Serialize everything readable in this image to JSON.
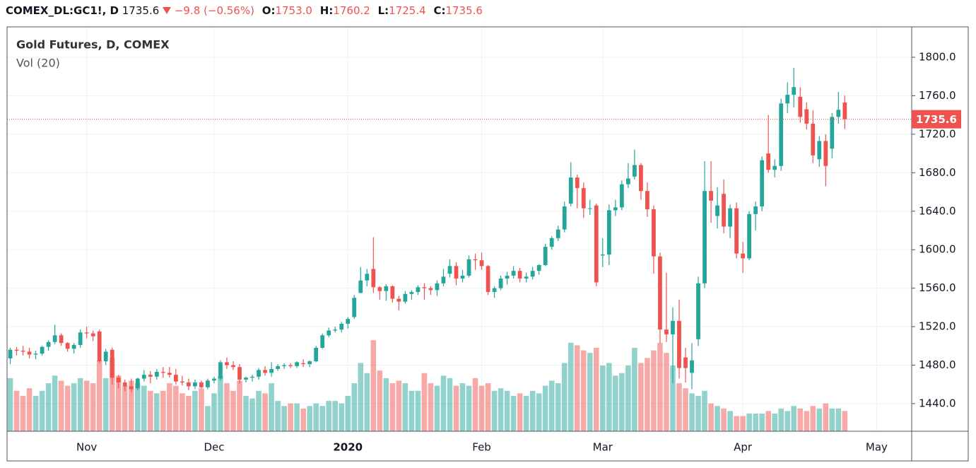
{
  "chart_data": {
    "type": "candlestick",
    "title": "Gold Futures, D, COMEX",
    "subtitle": "Vol (20)",
    "header": {
      "symbol": "COMEX_DL:GC1!, D",
      "last": "1735.6",
      "change": "−9.8 (−0.56%)",
      "o_label": "O:",
      "o": "1753.0",
      "h_label": "H:",
      "h": "1760.2",
      "l_label": "L:",
      "l": "1725.4",
      "c_label": "C:",
      "c": "1735.6"
    },
    "up_color": "#26a69a",
    "down_color": "#ef5350",
    "ylim": [
      1411.3,
      1831.6
    ],
    "yticks": [
      {
        "value": 1440,
        "label": "1440.0"
      },
      {
        "value": 1480,
        "label": "1480.0"
      },
      {
        "value": 1520,
        "label": "1520.0"
      },
      {
        "value": 1560,
        "label": "1560.0"
      },
      {
        "value": 1600,
        "label": "1600.0"
      },
      {
        "value": 1640,
        "label": "1640.0"
      },
      {
        "value": 1680,
        "label": "1680.0"
      },
      {
        "value": 1720,
        "label": "1720.0"
      },
      {
        "value": 1760,
        "label": "1760.0"
      },
      {
        "value": 1800,
        "label": "1800.0"
      }
    ],
    "volume_ylim": [
      0,
      800
    ],
    "grid": true,
    "categories": [
      null,
      null,
      null,
      null,
      null,
      null,
      null,
      null,
      null,
      null,
      null,
      null,
      "Nov",
      null,
      null,
      null,
      null,
      null,
      null,
      null,
      null,
      null,
      null,
      null,
      null,
      null,
      null,
      null,
      null,
      null,
      null,
      null,
      "Dec",
      null,
      null,
      null,
      null,
      null,
      null,
      null,
      null,
      null,
      null,
      null,
      null,
      null,
      null,
      null,
      null,
      null,
      null,
      null,
      null,
      "2020",
      null,
      null,
      null,
      null,
      null,
      null,
      null,
      null,
      null,
      null,
      null,
      null,
      null,
      null,
      null,
      null,
      null,
      null,
      null,
      null,
      "Feb",
      null,
      null,
      null,
      null,
      null,
      null,
      null,
      null,
      null,
      null,
      null,
      null,
      null,
      null,
      null,
      null,
      null,
      null,
      "Mar",
      null,
      null,
      null,
      null,
      null,
      null,
      null,
      null,
      null,
      null,
      null,
      null,
      null,
      null,
      null,
      null,
      null,
      null,
      null,
      null,
      null,
      "Apr",
      null,
      null,
      null,
      null,
      null,
      null,
      null,
      null,
      null,
      null,
      null,
      null,
      null,
      null,
      null,
      null,
      null,
      null,
      null,
      null,
      "May",
      null,
      null,
      null,
      null,
      null
    ],
    "open": [
      1487,
      1496,
      1495,
      1494,
      1491,
      1492,
      1499,
      1504,
      1511,
      1503,
      1497,
      1501,
      1514,
      1513,
      1515,
      1484,
      1496,
      1467,
      1462,
      1458,
      1456,
      1466,
      1470,
      1468,
      1473,
      1472,
      1470,
      1463,
      1462,
      1458,
      1462,
      1457,
      1464,
      1466,
      1483,
      1480,
      1478,
      1465,
      1467,
      1468,
      1475,
      1472,
      1476,
      1479,
      1480,
      1479,
      1482,
      1481,
      1484,
      1498,
      1511,
      1516,
      1517,
      1523,
      1530,
      1555,
      1568,
      1580,
      1561,
      1557,
      1562,
      1549,
      1546,
      1554,
      1556,
      1561,
      1560,
      1558,
      1565,
      1575,
      1583,
      1570,
      1573,
      1590,
      1589,
      1583,
      1556,
      1560,
      1570,
      1573,
      1578,
      1570,
      1572,
      1578,
      1584,
      1603,
      1612,
      1621,
      1648,
      1675,
      1664,
      1643,
      1646,
      1594,
      1595,
      1641,
      1644,
      1668,
      1676,
      1688,
      1661,
      1642,
      1593,
      1517,
      1512,
      1526,
      1488,
      1472,
      1507,
      1565,
      1661,
      1635,
      1658,
      1624,
      1643,
      1596,
      1591,
      1637,
      1645,
      1700,
      1683,
      1687,
      1752,
      1761,
      1759,
      1746,
      1731,
      1694,
      1713,
      1705,
      1738,
      1753,
      null,
      null,
      null,
      null,
      null,
      null,
      null,
      null,
      null,
      null
    ],
    "high": [
      1498,
      1499,
      1500,
      1498,
      1495,
      1500,
      1506,
      1522,
      1513,
      1504,
      1503,
      1517,
      1520,
      1516,
      1517,
      1497,
      1498,
      1470,
      1465,
      1466,
      1467,
      1475,
      1474,
      1476,
      1478,
      1478,
      1476,
      1469,
      1466,
      1465,
      1464,
      1466,
      1468,
      1485,
      1488,
      1484,
      1481,
      1468,
      1470,
      1477,
      1479,
      1483,
      1481,
      1482,
      1482,
      1484,
      1486,
      1485,
      1500,
      1513,
      1519,
      1520,
      1525,
      1530,
      1553,
      1582,
      1580,
      1613,
      1562,
      1564,
      1563,
      1552,
      1557,
      1558,
      1563,
      1565,
      1562,
      1568,
      1580,
      1590,
      1587,
      1579,
      1594,
      1596,
      1597,
      1584,
      1562,
      1573,
      1577,
      1583,
      1581,
      1576,
      1582,
      1585,
      1606,
      1614,
      1625,
      1650,
      1691,
      1678,
      1670,
      1652,
      1648,
      1612,
      1647,
      1652,
      1672,
      1690,
      1704,
      1690,
      1670,
      1646,
      1597,
      1576,
      1540,
      1548,
      1498,
      1503,
      1572,
      1692,
      1692,
      1665,
      1673,
      1647,
      1649,
      1608,
      1640,
      1650,
      1697,
      1740,
      1694,
      1757,
      1774,
      1789,
      1769,
      1753,
      1745,
      1718,
      1720,
      1742,
      1764,
      1760.2,
      null,
      null,
      null,
      null,
      null,
      null,
      null,
      null,
      null,
      null
    ],
    "low": [
      1481,
      1490,
      1490,
      1487,
      1486,
      1490,
      1495,
      1502,
      1500,
      1494,
      1492,
      1498,
      1508,
      1505,
      1482,
      1480,
      1460,
      1456,
      1453,
      1452,
      1454,
      1463,
      1461,
      1465,
      1467,
      1467,
      1460,
      1459,
      1454,
      1455,
      1456,
      1455,
      1461,
      1464,
      1476,
      1475,
      1461,
      1462,
      1463,
      1465,
      1469,
      1468,
      1474,
      1476,
      1477,
      1477,
      1478,
      1478,
      1483,
      1497,
      1509,
      1514,
      1514,
      1518,
      1528,
      1555,
      1562,
      1555,
      1548,
      1547,
      1545,
      1537,
      1544,
      1548,
      1553,
      1548,
      1553,
      1552,
      1562,
      1571,
      1563,
      1566,
      1571,
      1579,
      1579,
      1553,
      1550,
      1558,
      1564,
      1570,
      1566,
      1566,
      1569,
      1574,
      1583,
      1600,
      1609,
      1618,
      1645,
      1643,
      1633,
      1636,
      1562,
      1582,
      1584,
      1635,
      1641,
      1664,
      1673,
      1652,
      1634,
      1575,
      1503,
      1504,
      1461,
      1466,
      1462,
      1455,
      1500,
      1560,
      1628,
      1622,
      1617,
      1612,
      1591,
      1576,
      1589,
      1620,
      1640,
      1680,
      1675,
      1682,
      1742,
      1748,
      1732,
      1725,
      1690,
      1686,
      1666,
      1695,
      1731,
      1725.4,
      null,
      null,
      null,
      null,
      null,
      null,
      null,
      null,
      null,
      null
    ],
    "close": [
      1496,
      1495,
      1494,
      1491,
      1492,
      1499,
      1504,
      1511,
      1503,
      1497,
      1501,
      1514,
      1513,
      1510,
      1484,
      1494,
      1467,
      1462,
      1458,
      1455,
      1466,
      1470,
      1468,
      1473,
      1472,
      1470,
      1463,
      1462,
      1458,
      1462,
      1457,
      1464,
      1466,
      1483,
      1480,
      1478,
      1465,
      1467,
      1468,
      1475,
      1472,
      1476,
      1479,
      1480,
      1479,
      1483,
      1481,
      1484,
      1498,
      1511,
      1516,
      1517,
      1523,
      1528,
      1550,
      1568,
      1575,
      1561,
      1557,
      1562,
      1549,
      1546,
      1554,
      1556,
      1561,
      1560,
      1558,
      1565,
      1572,
      1583,
      1570,
      1573,
      1590,
      1589,
      1583,
      1556,
      1560,
      1570,
      1573,
      1578,
      1570,
      1572,
      1578,
      1584,
      1603,
      1612,
      1621,
      1645,
      1675,
      1664,
      1643,
      1643,
      1566,
      1595,
      1641,
      1644,
      1668,
      1674,
      1688,
      1661,
      1642,
      1593,
      1517,
      1512,
      1526,
      1477,
      1477,
      1485,
      1565,
      1661,
      1651,
      1646,
      1624,
      1643,
      1596,
      1591,
      1637,
      1645,
      1693,
      1683,
      1687,
      1752,
      1761,
      1769,
      1738,
      1731,
      1698,
      1713,
      1687,
      1738,
      1745.4,
      1735.6,
      null,
      null,
      null,
      null,
      null,
      null,
      null,
      null,
      null,
      null
    ],
    "volume": [
      105,
      80,
      70,
      85,
      70,
      80,
      95,
      110,
      100,
      90,
      95,
      105,
      100,
      95,
      140,
      105,
      145,
      110,
      90,
      100,
      95,
      90,
      80,
      75,
      80,
      95,
      90,
      75,
      70,
      80,
      85,
      50,
      75,
      110,
      95,
      80,
      100,
      70,
      65,
      80,
      75,
      95,
      60,
      50,
      55,
      55,
      45,
      50,
      55,
      50,
      60,
      60,
      55,
      70,
      95,
      135,
      115,
      180,
      120,
      105,
      95,
      100,
      95,
      80,
      80,
      115,
      95,
      90,
      110,
      105,
      90,
      95,
      90,
      105,
      90,
      95,
      80,
      85,
      80,
      70,
      75,
      70,
      80,
      75,
      90,
      100,
      95,
      135,
      175,
      170,
      160,
      155,
      165,
      130,
      135,
      110,
      115,
      130,
      165,
      135,
      145,
      160,
      175,
      155,
      130,
      95,
      85,
      75,
      70,
      80,
      55,
      50,
      45,
      40,
      30,
      30,
      35,
      35,
      35,
      40,
      35,
      45,
      40,
      50,
      45,
      40,
      50,
      45,
      55,
      45,
      45,
      40,
      null,
      null,
      null,
      null,
      null,
      null,
      null,
      null,
      null,
      null
    ]
  }
}
